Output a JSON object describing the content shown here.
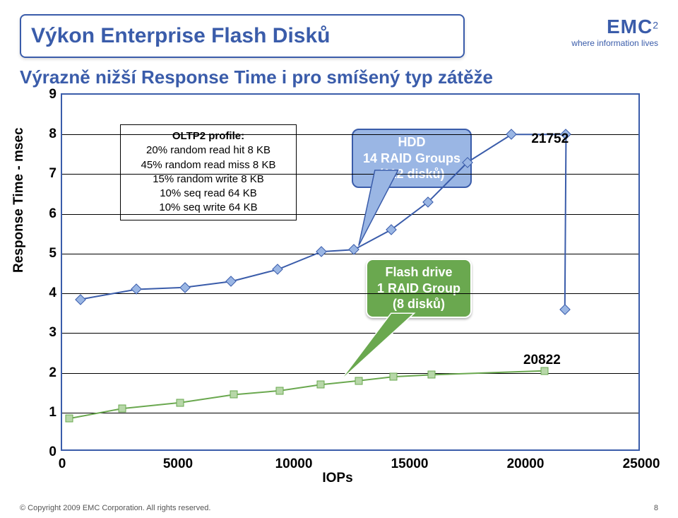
{
  "brand": {
    "name": "EMC",
    "sup": "2",
    "tagline": "where information lives"
  },
  "title": "Výkon Enterprise Flash Disků",
  "subtitle": "Výrazně nižší Response Time i pro smíšený typ zátěže",
  "footer": "© Copyright 2009 EMC Corporation. All rights reserved.",
  "pagenum": "8",
  "profile": {
    "heading": "OLTP2 profile:",
    "lines": [
      "20% random read hit 8 KB",
      "45% random read miss 8 KB",
      "15% random write 8 KB",
      "10% seq read 64 KB",
      "10% seq write 64 KB"
    ]
  },
  "callouts": {
    "hdd": {
      "l1": "HDD",
      "l2": "14 RAID Groups",
      "l3": "(112 disků)"
    },
    "flash": {
      "l1": "Flash drive",
      "l2": "1 RAID Group",
      "l3": "(8 disků)"
    }
  },
  "chart": {
    "type": "scatter-line",
    "xlabel": "IOPs",
    "ylabel": "Response Time - msec",
    "xlim": [
      0,
      25000
    ],
    "ylim": [
      0,
      9
    ],
    "xtick_step": 5000,
    "ytick_step": 1,
    "xticks": [
      0,
      5000,
      10000,
      15000,
      20000,
      25000
    ],
    "yticks": [
      0,
      1,
      2,
      3,
      4,
      5,
      6,
      7,
      8,
      9
    ],
    "background_color": "#ffffff",
    "border_color": "#3a5caa",
    "grid_color": "#000000",
    "title_color": "#3a5caa",
    "series": [
      {
        "name": "HDD",
        "marker": "diamond",
        "fill": "#9ab6e4",
        "stroke": "#3a5caa",
        "line_color": "#3a5caa",
        "line_width": 2,
        "end_label": "21752",
        "points": [
          [
            800,
            3.85
          ],
          [
            3200,
            4.1
          ],
          [
            5300,
            4.15
          ],
          [
            7300,
            4.3
          ],
          [
            9300,
            4.6
          ],
          [
            11200,
            5.05
          ],
          [
            12600,
            5.1
          ],
          [
            14200,
            5.6
          ],
          [
            15800,
            6.3
          ],
          [
            17500,
            7.3
          ],
          [
            19400,
            8.0
          ],
          [
            21752,
            8.0
          ],
          [
            21700,
            3.6
          ]
        ]
      },
      {
        "name": "Flash",
        "marker": "square",
        "fill": "#b7d7a8",
        "stroke": "#6aa84f",
        "line_color": "#6aa84f",
        "line_width": 2,
        "end_label": "20822",
        "points": [
          [
            300,
            0.85
          ],
          [
            2600,
            1.1
          ],
          [
            5100,
            1.25
          ],
          [
            7400,
            1.45
          ],
          [
            9400,
            1.55
          ],
          [
            11150,
            1.7
          ],
          [
            12800,
            1.8
          ],
          [
            14300,
            1.9
          ],
          [
            15950,
            1.95
          ],
          [
            20822,
            2.05
          ]
        ]
      }
    ]
  }
}
